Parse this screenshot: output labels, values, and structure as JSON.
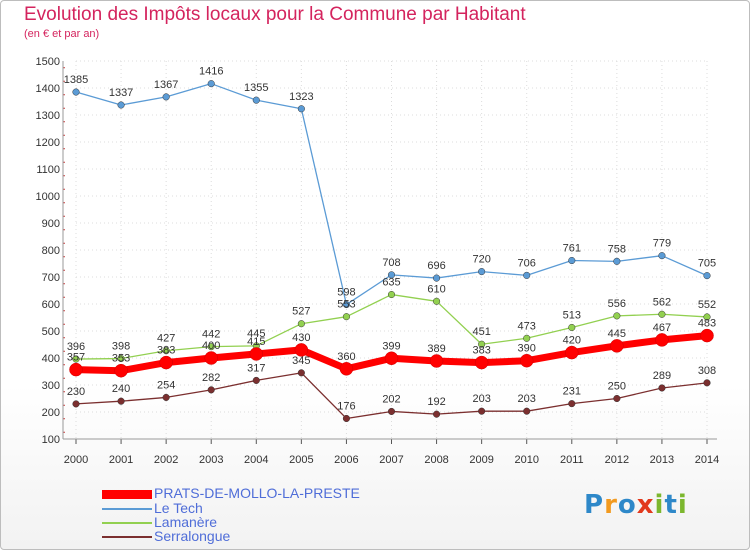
{
  "header": {
    "title": "Evolution des Impôts locaux pour la Commune par Habitant",
    "subtitle": "(en € et par an)"
  },
  "logo": {
    "text": "Proxiti",
    "letters": [
      "P",
      "r",
      "o",
      "x",
      "i",
      "t",
      "i"
    ],
    "colors": [
      "#2e88c9",
      "#f29a1f",
      "#2e88c9",
      "#e2391d",
      "#7cb72e",
      "#2e88c9",
      "#7cb72e"
    ]
  },
  "chart_data": {
    "type": "line",
    "title": "Evolution des Impôts locaux pour la Commune par Habitant",
    "subtitle": "(en € et par an)",
    "x": [
      2000,
      2001,
      2002,
      2003,
      2004,
      2005,
      2006,
      2007,
      2008,
      2009,
      2010,
      2011,
      2012,
      2013,
      2014
    ],
    "ylim": [
      100,
      1500
    ],
    "yticks": [
      100,
      200,
      300,
      400,
      500,
      600,
      700,
      800,
      900,
      1000,
      1100,
      1200,
      1300,
      1400,
      1500
    ],
    "grid": true,
    "legend_position": "bottom-left",
    "series": [
      {
        "name": "PRATS-DE-MOLLO-LA-PRESTE",
        "color": "#ff0000",
        "values": [
          357,
          353,
          383,
          400,
          415,
          430,
          360,
          399,
          389,
          383,
          390,
          420,
          445,
          467,
          483
        ],
        "labels": [
          "357",
          "353",
          "383",
          "400",
          "415",
          "430",
          "360",
          "399",
          "389",
          "383",
          "390",
          "420",
          "445",
          "467",
          "483"
        ]
      },
      {
        "name": "Le Tech",
        "color": "#5b9bd5",
        "values": [
          1385,
          1337,
          1367,
          1416,
          1355,
          1323,
          598,
          708,
          696,
          720,
          706,
          761,
          758,
          779,
          705
        ],
        "labels": [
          "1385",
          "1337",
          "1367",
          "1416",
          "1355",
          "1323",
          "598",
          "708",
          "696",
          "720",
          "706",
          "761",
          "758",
          "779",
          "705"
        ]
      },
      {
        "name": "Lamanère",
        "color": "#92d050",
        "values": [
          396,
          398,
          427,
          442,
          445,
          527,
          553,
          635,
          610,
          451,
          473,
          513,
          556,
          562,
          552
        ],
        "labels": [
          "396",
          "398",
          "427",
          "442",
          "445",
          "527",
          "553",
          "635",
          "610",
          "451",
          "473",
          "513",
          "556",
          "562",
          "552"
        ]
      },
      {
        "name": "Serralongue",
        "color": "#7b2f2f",
        "values": [
          230,
          240,
          254,
          282,
          317,
          345,
          176,
          202,
          192,
          203,
          203,
          231,
          250,
          289,
          308
        ],
        "labels": [
          "230",
          "240",
          "254",
          "282",
          "317",
          "345",
          "176",
          "202",
          "192",
          "203",
          "203",
          "231",
          "250",
          "289",
          "308"
        ]
      }
    ]
  }
}
